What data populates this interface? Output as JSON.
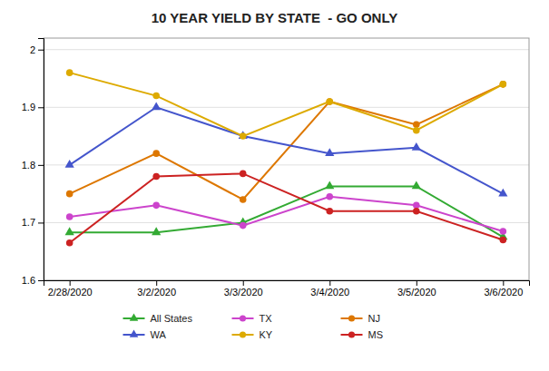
{
  "chart_data": {
    "type": "line",
    "title": "10 YEAR YIELD BY STATE  - GO ONLY",
    "categories": [
      "2/28/2020",
      "3/2/2020",
      "3/3/2020",
      "3/4/2020",
      "3/5/2020",
      "3/6/2020"
    ],
    "series": [
      {
        "name": "All States",
        "color": "#33aa33",
        "marker": "triangle",
        "values": [
          1.683,
          1.683,
          1.7,
          1.763,
          1.763,
          1.675
        ]
      },
      {
        "name": "TX",
        "color": "#cc44cc",
        "marker": "circle",
        "values": [
          1.71,
          1.73,
          1.695,
          1.745,
          1.73,
          1.685
        ]
      },
      {
        "name": "NJ",
        "color": "#dd7700",
        "marker": "circle",
        "values": [
          1.75,
          1.82,
          1.74,
          1.91,
          1.87,
          1.94
        ]
      },
      {
        "name": "WA",
        "color": "#4455cc",
        "marker": "triangle",
        "values": [
          1.8,
          1.9,
          1.85,
          1.82,
          1.83,
          1.75
        ]
      },
      {
        "name": "KY",
        "color": "#ddaa00",
        "marker": "circle",
        "values": [
          1.96,
          1.92,
          1.85,
          1.91,
          1.86,
          1.94
        ]
      },
      {
        "name": "MS",
        "color": "#cc2222",
        "marker": "circle",
        "values": [
          1.665,
          1.78,
          1.785,
          1.72,
          1.72,
          1.67
        ]
      }
    ],
    "ylim": [
      1.6,
      2.02
    ],
    "yticks": [
      1.6,
      1.7,
      1.8,
      1.9,
      2
    ],
    "grid": true,
    "legend": "bottom"
  }
}
